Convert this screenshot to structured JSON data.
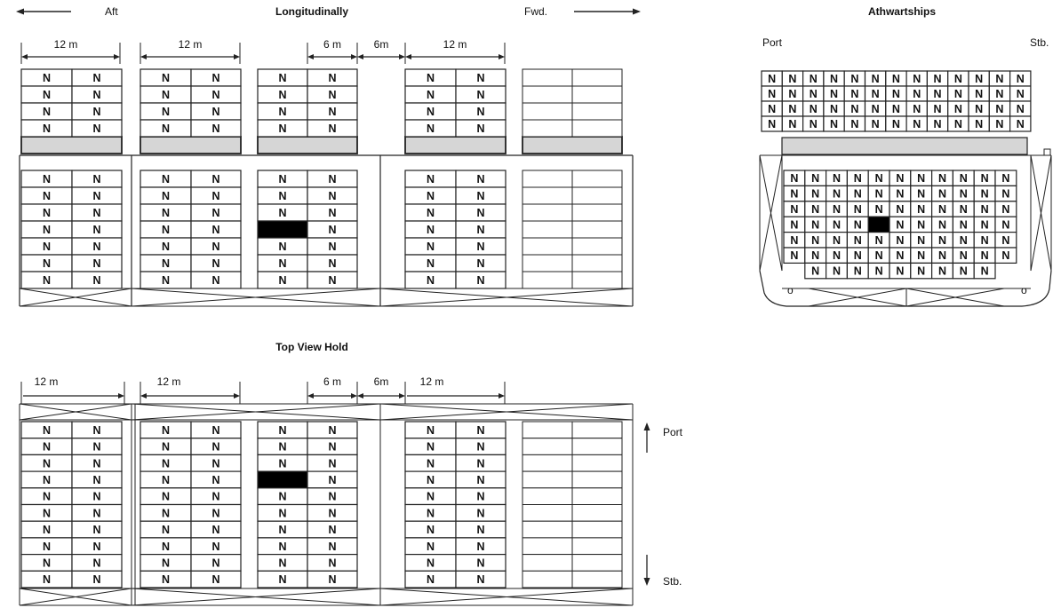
{
  "titles": {
    "longitudinal": "Longitudinally",
    "athwartships": "Athwartships",
    "top_view": "Top View Hold"
  },
  "directions": {
    "aft": "Aft",
    "fwd": "Fwd.",
    "port": "Port",
    "stb": "Stb."
  },
  "cell_label": "N",
  "dimensions": {
    "bay_a": "12 m",
    "bay_b": "12 m",
    "bay_c1": "6 m",
    "gap": "6m",
    "bay_d": "12 m"
  },
  "hold_marks": {
    "left": "o",
    "right": "o"
  },
  "colors": {
    "line": "#222222",
    "filled_container": "#000000",
    "hatch_cover": "#d6d6d6"
  }
}
